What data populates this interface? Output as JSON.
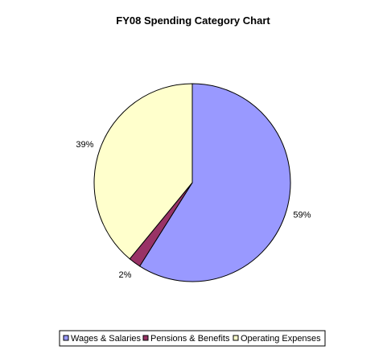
{
  "chart_data": {
    "type": "pie",
    "title": "FY08 Spending Category Chart",
    "slices": [
      {
        "name": "Wages & Salaries",
        "value": 59,
        "label": "59%",
        "color": "#9999ff"
      },
      {
        "name": "Pensions & Benefits",
        "value": 2,
        "label": "2%",
        "color": "#993366"
      },
      {
        "name": "Operating Expenses",
        "value": 39,
        "label": "39%",
        "color": "#ffffcc"
      }
    ],
    "legend_placement": "bottom"
  }
}
